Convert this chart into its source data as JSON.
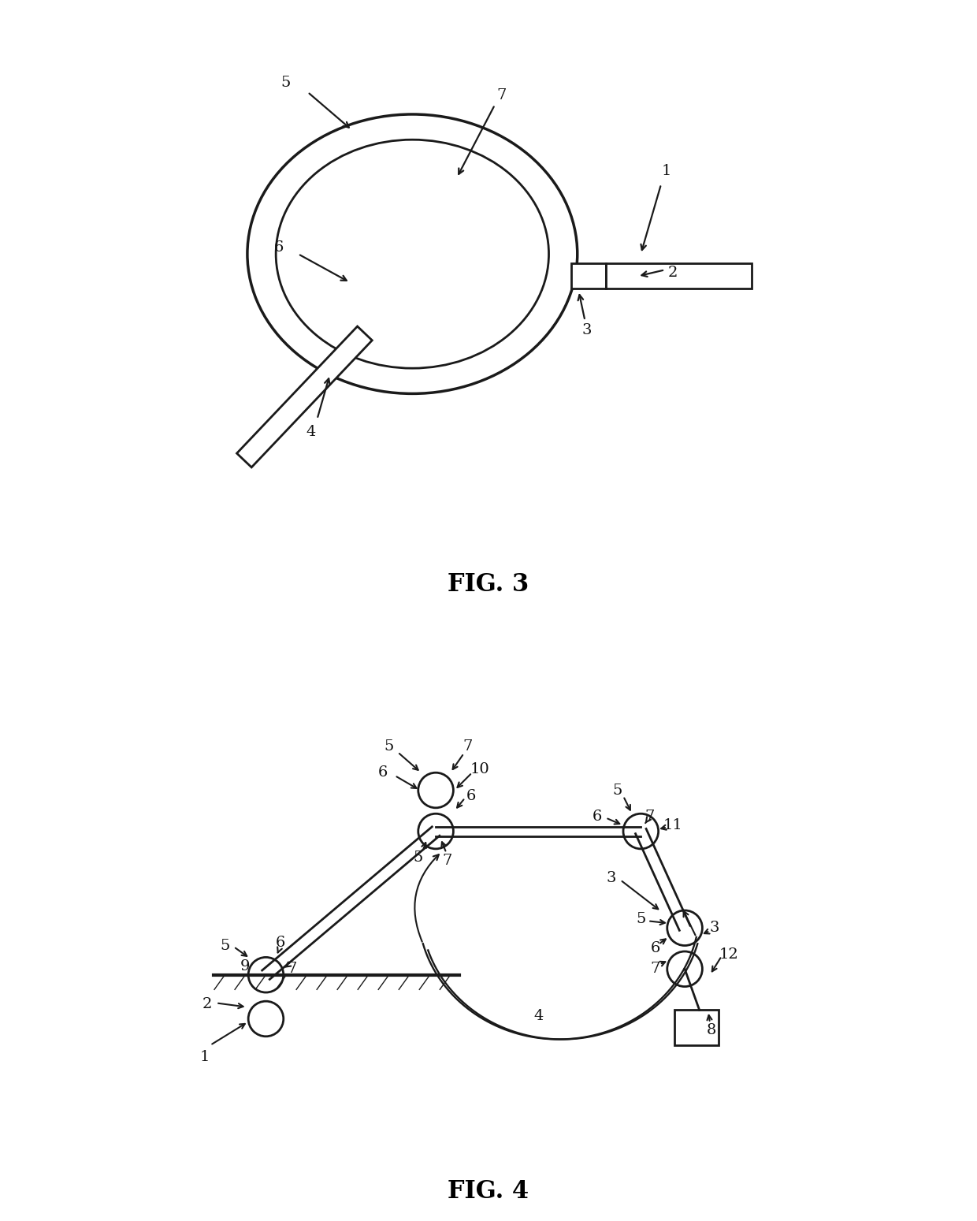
{
  "background_color": "#ffffff",
  "line_color": "#1a1a1a",
  "line_width": 2.0,
  "font_size_label": 14,
  "font_size_title": 22,
  "fig3_title": "FIG. 3",
  "fig4_title": "FIG. 4"
}
